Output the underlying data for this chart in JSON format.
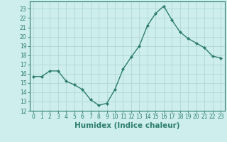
{
  "x": [
    0,
    1,
    2,
    3,
    4,
    5,
    6,
    7,
    8,
    9,
    10,
    11,
    12,
    13,
    14,
    15,
    16,
    17,
    18,
    19,
    20,
    21,
    22,
    23
  ],
  "y": [
    15.7,
    15.7,
    16.3,
    16.3,
    15.2,
    14.8,
    14.3,
    13.2,
    12.6,
    12.8,
    14.3,
    16.5,
    17.8,
    19.0,
    21.2,
    22.5,
    23.3,
    21.8,
    20.5,
    19.8,
    19.3,
    18.8,
    17.9,
    17.7
  ],
  "line_color": "#2e7d6e",
  "marker": "D",
  "marker_size": 2.0,
  "line_width": 1.0,
  "bg_color": "#cdeeed",
  "grid_color": "#b0d8d5",
  "xlabel": "Humidex (Indice chaleur)",
  "xlim": [
    -0.5,
    23.5
  ],
  "ylim": [
    12,
    23.8
  ],
  "yticks": [
    12,
    13,
    14,
    15,
    16,
    17,
    18,
    19,
    20,
    21,
    22,
    23
  ],
  "xticks": [
    0,
    1,
    2,
    3,
    4,
    5,
    6,
    7,
    8,
    9,
    10,
    11,
    12,
    13,
    14,
    15,
    16,
    17,
    18,
    19,
    20,
    21,
    22,
    23
  ],
  "tick_fontsize": 5.5,
  "xlabel_fontsize": 7.5
}
